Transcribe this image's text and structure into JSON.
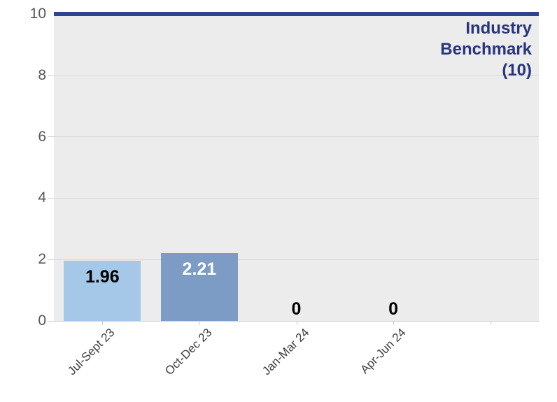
{
  "chart_data": {
    "type": "bar",
    "categories": [
      "Jul-Sept 23",
      "Oct-Dec 23",
      "Jan-Mar 24",
      "Apr-Jun 24",
      ""
    ],
    "values": [
      1.96,
      2.21,
      0,
      0,
      null
    ],
    "data_labels": [
      "1.96",
      "2.21",
      "0",
      "0",
      ""
    ],
    "bar_colors": [
      "#a5c8e9",
      "#7c9cc6",
      null,
      null,
      null
    ],
    "data_label_colors": [
      "#000000",
      "#ffffff",
      "#000000",
      "#000000",
      null
    ],
    "title": "",
    "xlabel": "",
    "ylabel": "",
    "ylim": [
      0,
      10
    ],
    "yticks": [
      0,
      2,
      4,
      6,
      8,
      10
    ],
    "grid": true,
    "legend": null,
    "benchmark": {
      "value": 10,
      "label": "Industry Benchmark (10)",
      "line_color": "#2e4390",
      "label_color": "#27357d"
    },
    "colors": {
      "plot_background": "#ececec",
      "gridline": "#d7d7d7",
      "baseline": "#cfcfcf",
      "tick": "#cfcfcf",
      "y_axis_label": "#55565a",
      "x_axis_label": "#3d3d3d"
    },
    "x_label_rotation_deg": -45
  }
}
